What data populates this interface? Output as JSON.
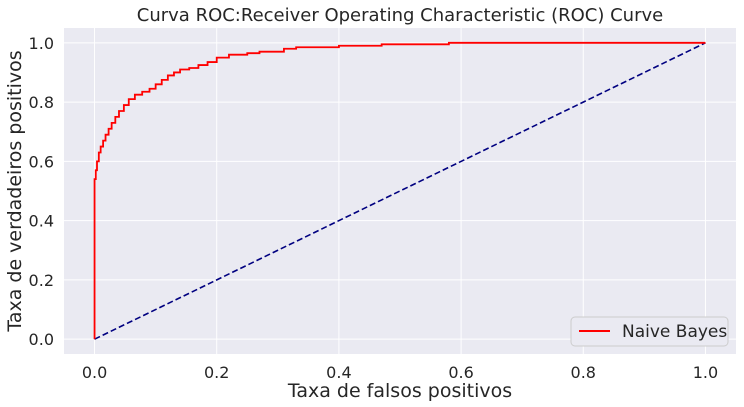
{
  "chart_data": {
    "type": "line",
    "title": "Curva ROC:Receiver Operating Characteristic (ROC) Curve",
    "xlabel": "Taxa de falsos positivos",
    "ylabel": "Taxa de verdadeiros positivos",
    "xlim": [
      -0.05,
      1.05
    ],
    "ylim": [
      -0.05,
      1.05
    ],
    "xticks": [
      "0.0",
      "0.2",
      "0.4",
      "0.6",
      "0.8",
      "1.0"
    ],
    "yticks": [
      "0.0",
      "0.2",
      "0.4",
      "0.6",
      "0.8",
      "1.0"
    ],
    "grid": true,
    "legend_position": "bottom-right",
    "background_color": "#eaeaf2",
    "series": [
      {
        "name": "Naive Bayes",
        "color": "#ff0000",
        "style": "solid",
        "in_legend": true,
        "x": [
          0.0,
          0.0,
          0.002,
          0.002,
          0.004,
          0.004,
          0.007,
          0.007,
          0.01,
          0.01,
          0.014,
          0.014,
          0.018,
          0.018,
          0.023,
          0.023,
          0.028,
          0.028,
          0.034,
          0.034,
          0.04,
          0.04,
          0.048,
          0.048,
          0.056,
          0.056,
          0.066,
          0.066,
          0.078,
          0.078,
          0.09,
          0.09,
          0.1,
          0.1,
          0.11,
          0.11,
          0.12,
          0.12,
          0.13,
          0.13,
          0.14,
          0.14,
          0.155,
          0.155,
          0.17,
          0.17,
          0.185,
          0.185,
          0.2,
          0.2,
          0.22,
          0.22,
          0.25,
          0.25,
          0.27,
          0.27,
          0.31,
          0.31,
          0.33,
          0.33,
          0.4,
          0.4,
          0.47,
          0.47,
          0.58,
          0.58,
          0.8,
          1.0
        ],
        "y": [
          0.0,
          0.54,
          0.54,
          0.57,
          0.57,
          0.6,
          0.6,
          0.63,
          0.63,
          0.65,
          0.65,
          0.67,
          0.67,
          0.69,
          0.69,
          0.71,
          0.71,
          0.73,
          0.73,
          0.75,
          0.75,
          0.77,
          0.77,
          0.79,
          0.79,
          0.81,
          0.81,
          0.825,
          0.825,
          0.835,
          0.835,
          0.845,
          0.845,
          0.86,
          0.86,
          0.875,
          0.875,
          0.89,
          0.89,
          0.9,
          0.9,
          0.91,
          0.91,
          0.915,
          0.915,
          0.925,
          0.925,
          0.935,
          0.935,
          0.95,
          0.95,
          0.96,
          0.96,
          0.965,
          0.965,
          0.97,
          0.97,
          0.98,
          0.98,
          0.985,
          0.985,
          0.99,
          0.99,
          0.995,
          0.995,
          1.0,
          1.0,
          1.0
        ]
      },
      {
        "name": "",
        "color": "#000080",
        "style": "dashed",
        "in_legend": false,
        "x": [
          0.0,
          1.0
        ],
        "y": [
          0.0,
          1.0
        ]
      }
    ]
  }
}
